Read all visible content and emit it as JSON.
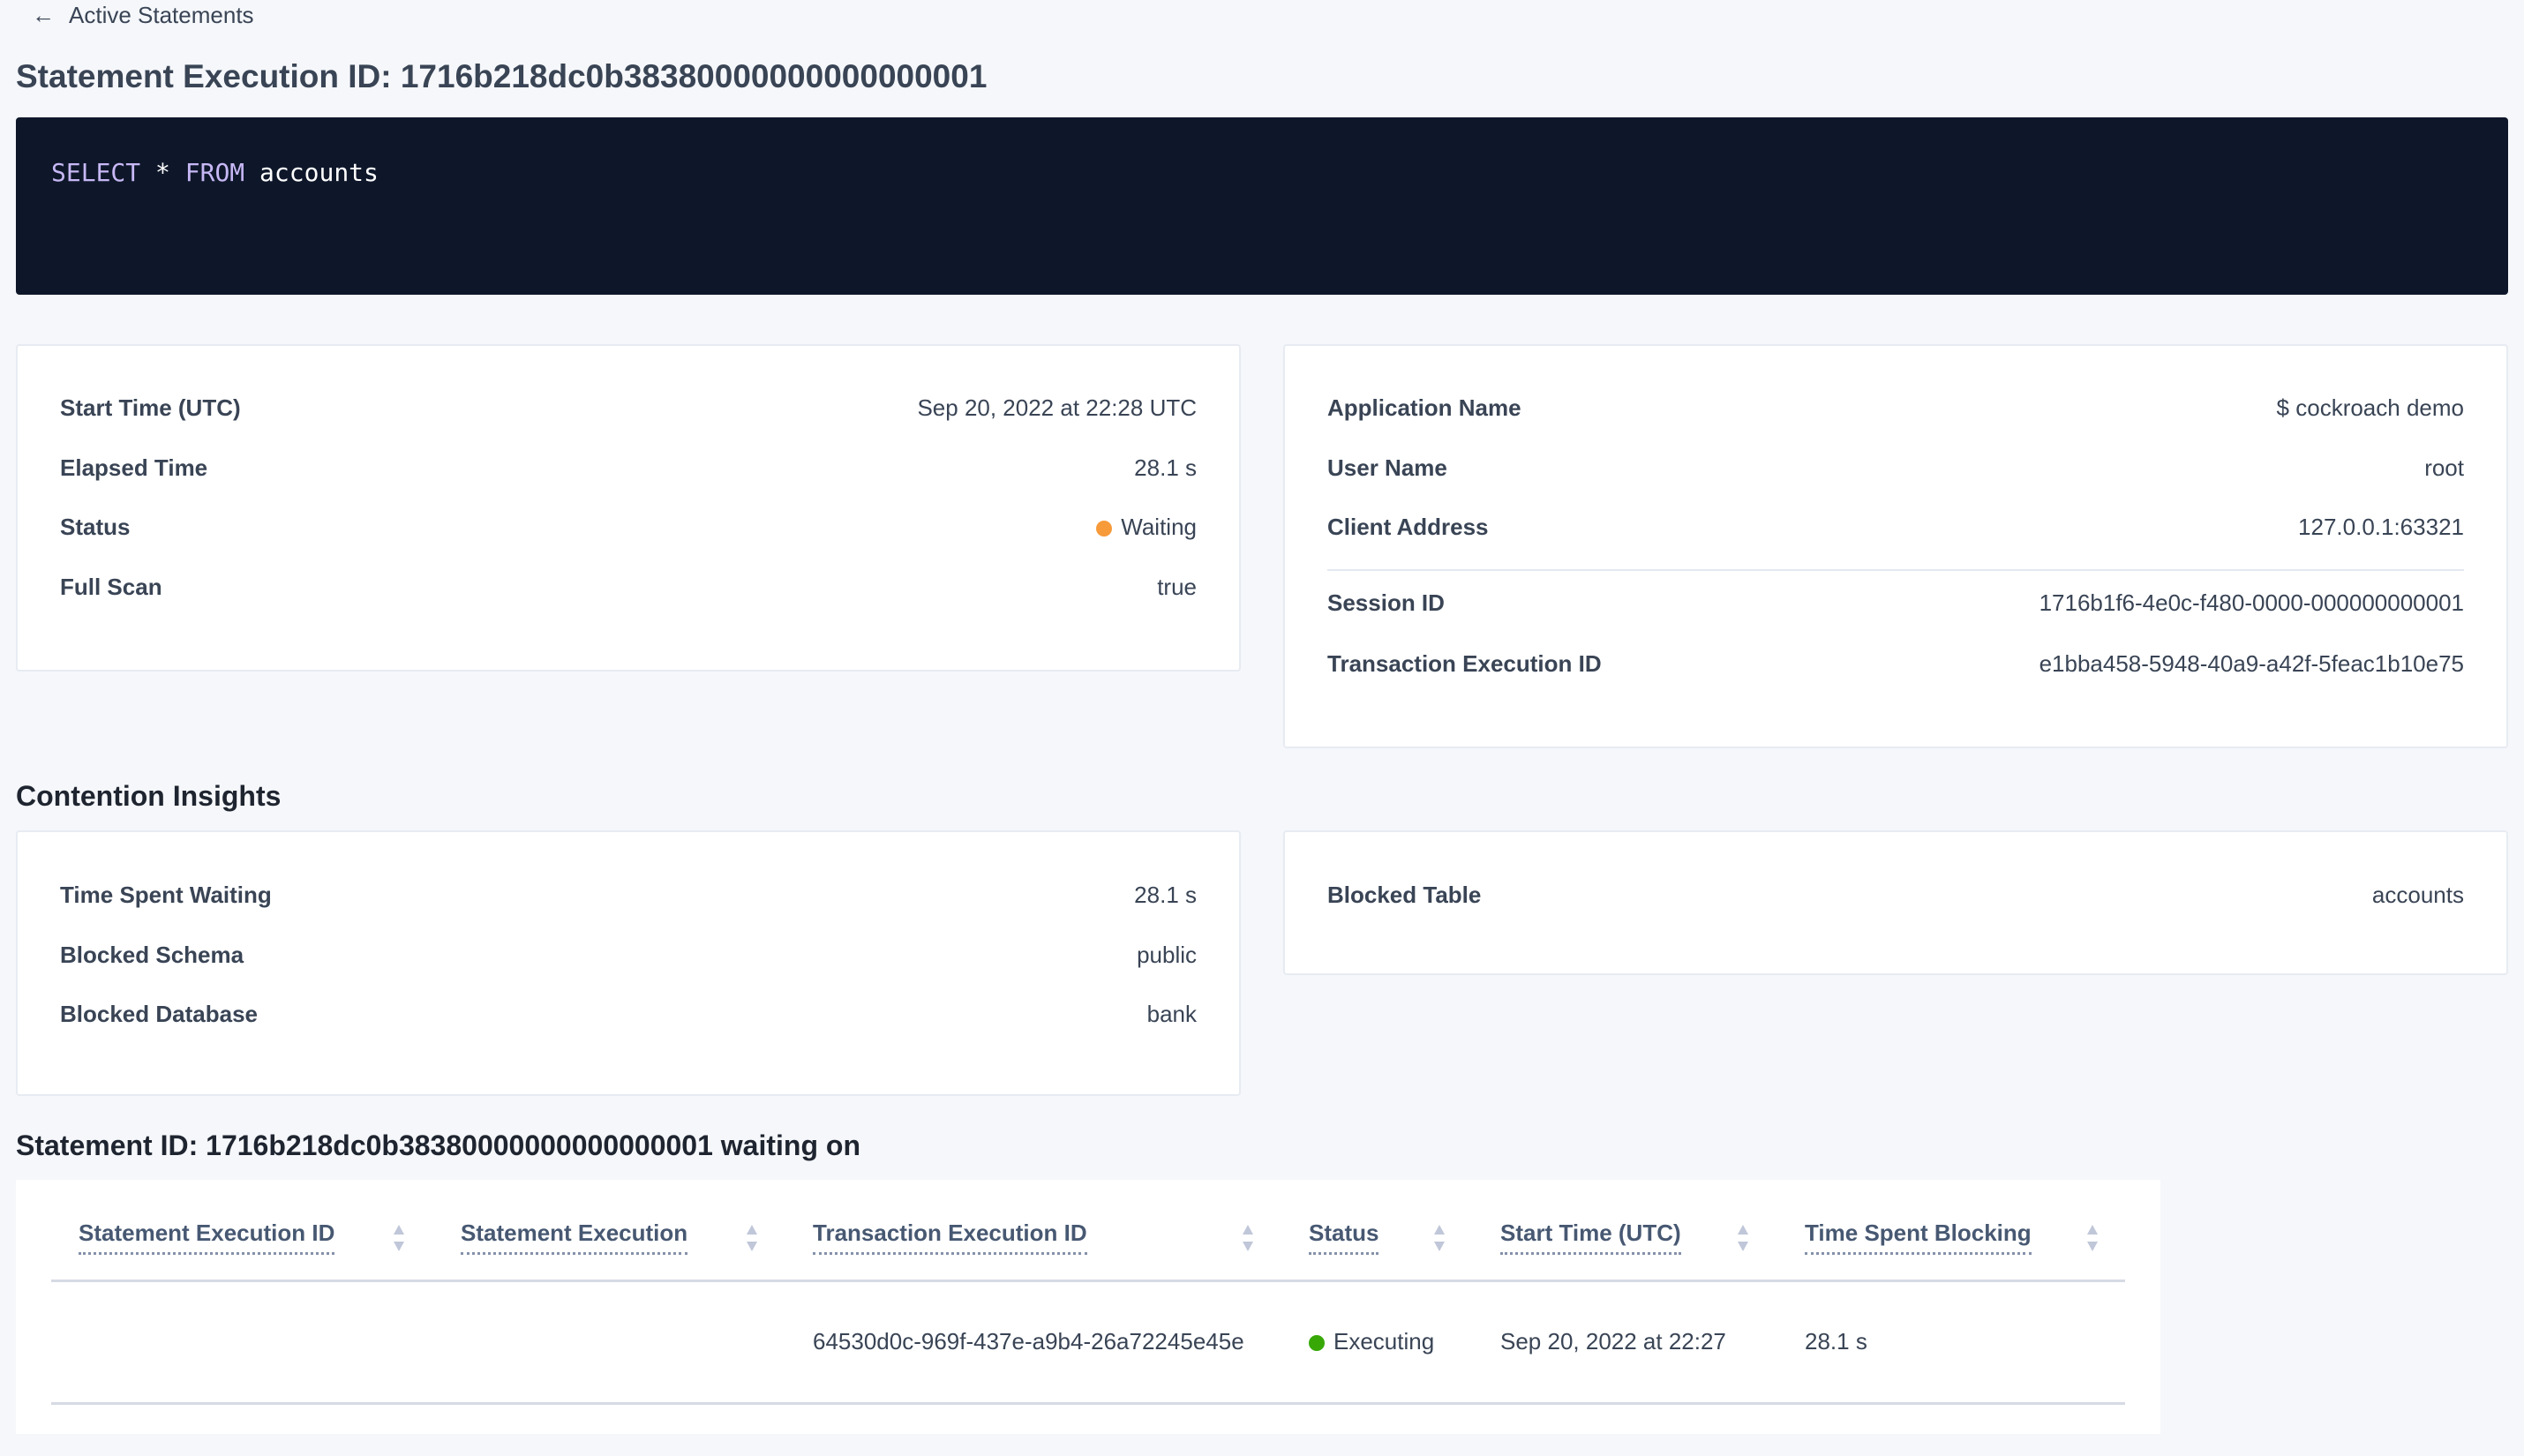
{
  "breadcrumb": {
    "back_label": "Active Statements"
  },
  "page_title": "Statement Execution ID: 1716b218dc0b38380000000000000001",
  "sql": {
    "keyword1": "SELECT",
    "star": "*",
    "keyword2": "FROM",
    "table": "accounts"
  },
  "overview_left": [
    {
      "label": "Start Time (UTC)",
      "value": "Sep 20, 2022 at 22:28 UTC"
    },
    {
      "label": "Elapsed Time",
      "value": "28.1 s"
    },
    {
      "label": "Status",
      "value": "Waiting",
      "status_color": "#f79a3a"
    },
    {
      "label": "Full Scan",
      "value": "true"
    }
  ],
  "overview_right": [
    {
      "label": "Application Name",
      "value": "$ cockroach demo"
    },
    {
      "label": "User Name",
      "value": "root"
    },
    {
      "label": "Client Address",
      "value": "127.0.0.1:63321"
    },
    {
      "label": "Session ID",
      "value": "1716b1f6-4e0c-f480-0000-000000000001"
    },
    {
      "label": "Transaction Execution ID",
      "value": "e1bba458-5948-40a9-a42f-5feac1b10e75"
    }
  ],
  "contention": {
    "heading": "Contention Insights",
    "left": [
      {
        "label": "Time Spent Waiting",
        "value": "28.1 s"
      },
      {
        "label": "Blocked Schema",
        "value": "public"
      },
      {
        "label": "Blocked Database",
        "value": "bank"
      }
    ],
    "right": [
      {
        "label": "Blocked Table",
        "value": "accounts"
      }
    ]
  },
  "waiting": {
    "heading": "Statement ID: 1716b218dc0b38380000000000000001 waiting on",
    "columns": [
      "Statement Execution ID",
      "Statement Execution",
      "Transaction Execution ID",
      "Status",
      "Start Time (UTC)",
      "Time Spent Blocking"
    ],
    "rows": [
      {
        "statement_execution_id": "",
        "statement_execution": "",
        "transaction_execution_id": "64530d0c-969f-437e-a9b4-26a72245e45e",
        "status": "Executing",
        "status_color": "#37a806",
        "start_time": "Sep 20, 2022 at 22:27",
        "time_spent_blocking": "28.1 s"
      }
    ]
  }
}
